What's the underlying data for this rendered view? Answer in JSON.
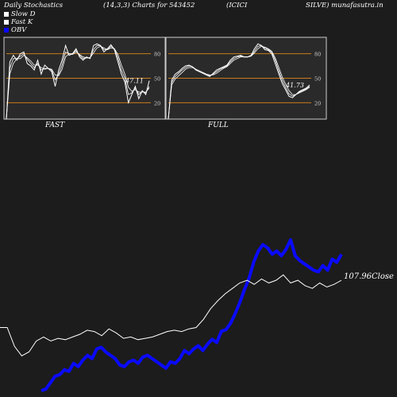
{
  "header": {
    "title": "Daily Stochastics",
    "params": "(14,3,3) Charts for 543452",
    "company_a": "(ICICI",
    "company_b": "SILVE) munafasutra.in"
  },
  "legend": [
    {
      "label": "Slow  D",
      "color": "#ffffff"
    },
    {
      "label": "Fast K",
      "color": "#ffffff"
    },
    {
      "label": "OBV",
      "color": "#0a0aff"
    }
  ],
  "colors": {
    "background": "#1c1c1c",
    "panel_bg": "#2a2a2a",
    "level_line": "#c87a1a",
    "stoch_line": "#ffffff",
    "obv_line": "#0a0aff",
    "price_line": "#ffffff"
  },
  "panels": {
    "fast": {
      "label": "FAST",
      "last_value": "47.11"
    },
    "full": {
      "label": "FULL",
      "last_value": "41.73"
    }
  },
  "price": {
    "close_label": "107.96Close"
  },
  "chart_data": [
    {
      "type": "line",
      "name": "FAST",
      "ylim": [
        0,
        100
      ],
      "yticks": [
        "80",
        "50",
        "20"
      ],
      "levels": [
        80,
        50,
        20
      ],
      "series": [
        {
          "values": [
            0,
            70,
            78,
            72,
            80,
            82,
            68,
            65,
            60,
            72,
            55,
            66,
            62,
            58,
            40,
            60,
            72,
            90,
            78,
            80,
            86,
            76,
            72,
            76,
            74,
            90,
            92,
            90,
            82,
            86,
            91,
            85,
            70,
            55,
            45,
            20,
            30,
            40,
            25,
            35,
            30,
            47
          ]
        },
        {
          "values": [
            0,
            62,
            74,
            74,
            77,
            80,
            73,
            68,
            63,
            68,
            60,
            62,
            62,
            60,
            48,
            55,
            66,
            82,
            80,
            80,
            84,
            78,
            74,
            75,
            75,
            85,
            90,
            90,
            85,
            85,
            89,
            86,
            75,
            60,
            50,
            30,
            32,
            38,
            30,
            34,
            32,
            40
          ]
        },
        {
          "values": [
            0,
            55,
            68,
            74,
            74,
            78,
            75,
            71,
            66,
            66,
            63,
            61,
            62,
            61,
            54,
            53,
            61,
            76,
            80,
            79,
            82,
            79,
            76,
            75,
            75,
            81,
            87,
            89,
            87,
            85,
            87,
            86,
            79,
            66,
            55,
            39,
            34,
            36,
            33,
            33,
            33,
            38
          ]
        }
      ]
    },
    {
      "type": "line",
      "name": "FULL",
      "ylim": [
        0,
        100
      ],
      "yticks": [
        "80",
        "50",
        "20"
      ],
      "levels": [
        80,
        50,
        20
      ],
      "series": [
        {
          "values": [
            0,
            48,
            55,
            58,
            62,
            65,
            66,
            64,
            60,
            58,
            56,
            54,
            52,
            56,
            60,
            62,
            64,
            66,
            72,
            76,
            77,
            78,
            76,
            76,
            78,
            86,
            92,
            90,
            85,
            84,
            80,
            68,
            56,
            44,
            36,
            28,
            26,
            30,
            34,
            36,
            38,
            41.73
          ]
        },
        {
          "values": [
            0,
            45,
            52,
            56,
            60,
            63,
            65,
            64,
            61,
            59,
            57,
            55,
            53,
            55,
            58,
            61,
            63,
            65,
            70,
            74,
            76,
            77,
            76,
            76,
            77,
            83,
            89,
            90,
            87,
            85,
            82,
            72,
            60,
            48,
            39,
            31,
            28,
            30,
            33,
            35,
            37,
            40
          ]
        },
        {
          "values": [
            0,
            42,
            49,
            53,
            57,
            61,
            63,
            63,
            61,
            59,
            57,
            55,
            54,
            54,
            56,
            59,
            62,
            64,
            68,
            72,
            74,
            76,
            76,
            76,
            77,
            81,
            86,
            89,
            88,
            86,
            83,
            75,
            64,
            52,
            43,
            35,
            30,
            30,
            32,
            34,
            36,
            39
          ]
        }
      ]
    },
    {
      "type": "line",
      "name": "OBV",
      "series": [
        {
          "name": "OBV",
          "values": [
            0,
            2,
            10,
            18,
            20,
            26,
            24,
            34,
            30,
            38,
            44,
            40,
            52,
            54,
            48,
            44,
            40,
            32,
            30,
            36,
            38,
            34,
            42,
            44,
            40,
            36,
            32,
            28,
            36,
            34,
            40,
            50,
            46,
            52,
            56,
            50,
            58,
            64,
            60,
            74,
            76,
            84,
            96,
            110,
            126,
            140,
            160,
            174,
            182,
            178,
            170,
            174,
            168,
            176,
            188,
            168,
            162,
            158,
            154,
            150,
            148,
            156,
            150,
            164,
            160,
            170
          ]
        },
        {
          "name": "Close",
          "values": [
            100,
            100,
            72,
            58,
            64,
            80,
            86,
            80,
            84,
            82,
            86,
            90,
            96,
            94,
            88,
            98,
            92,
            84,
            86,
            82,
            84,
            86,
            90,
            94,
            96,
            94,
            98,
            100,
            112,
            128,
            140,
            150,
            158,
            166,
            170,
            164,
            172,
            166,
            170,
            178,
            166,
            170,
            162,
            158,
            166,
            160,
            164,
            170
          ]
        }
      ]
    }
  ]
}
